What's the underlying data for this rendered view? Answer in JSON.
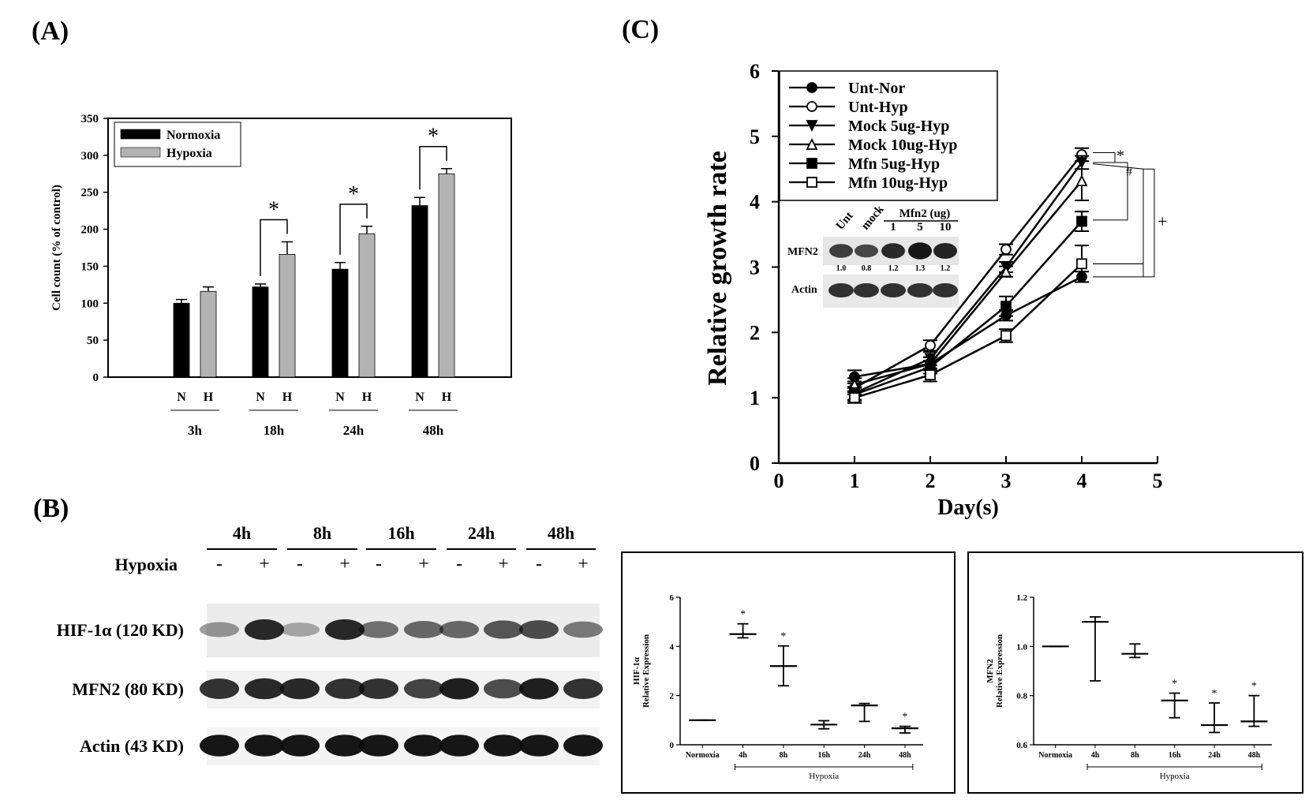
{
  "figure": {
    "panel_a": "(A)",
    "panel_b": "(B)",
    "panel_c": "(C)"
  },
  "chart_data": [
    {
      "id": "A",
      "type": "bar",
      "ylabel": "Cell count (% of control)",
      "ylim": [
        0,
        350
      ],
      "yticks": [
        0,
        50,
        100,
        150,
        200,
        250,
        300,
        350
      ],
      "groups": [
        "3h",
        "18h",
        "24h",
        "48h"
      ],
      "bar_labels": [
        "N",
        "H"
      ],
      "legend_position": "top-left",
      "grid": false,
      "series": [
        {
          "name": "Normoxia",
          "color": "#000000",
          "values": [
            100,
            122,
            146,
            232
          ],
          "errors": [
            5,
            4,
            9,
            11
          ]
        },
        {
          "name": "Hypoxia",
          "color": "#b3b3b3",
          "values": [
            116,
            166,
            194,
            275
          ],
          "errors": [
            6,
            17,
            10,
            7
          ]
        }
      ],
      "annotations": [
        {
          "group": "18h",
          "text": "*"
        },
        {
          "group": "24h",
          "text": "*"
        },
        {
          "group": "48h",
          "text": "*"
        }
      ]
    },
    {
      "id": "C",
      "type": "line",
      "xlabel": "Day(s)",
      "ylabel": "Relative growth rate",
      "xlim": [
        0,
        5
      ],
      "ylim": [
        0,
        6
      ],
      "xticks": [
        0,
        1,
        2,
        3,
        4,
        5
      ],
      "yticks": [
        0,
        1,
        2,
        3,
        4,
        5,
        6
      ],
      "legend_position": "top-left",
      "grid": false,
      "x": [
        1,
        2,
        3,
        4
      ],
      "series": [
        {
          "name": "Unt-Nor",
          "marker": "circle-filled",
          "values": [
            1.32,
            1.52,
            2.26,
            2.85
          ],
          "errors": [
            0.1,
            0.1,
            0.08,
            0.08
          ]
        },
        {
          "name": "Unt-Hyp",
          "marker": "circle-open",
          "values": [
            1.15,
            1.8,
            3.27,
            4.72
          ],
          "errors": [
            0.1,
            0.08,
            0.08,
            0.1
          ]
        },
        {
          "name": "Mock 5ug-Hyp",
          "marker": "triangle-down-filled",
          "values": [
            1.07,
            1.6,
            3.0,
            4.6
          ],
          "errors": [
            0.1,
            0.1,
            0.08,
            0.1
          ]
        },
        {
          "name": "Mock 10ug-Hyp",
          "marker": "triangle-up-open",
          "values": [
            1.2,
            1.52,
            2.93,
            4.32
          ],
          "errors": [
            0.1,
            0.1,
            0.08,
            0.3
          ]
        },
        {
          "name": "Mfn 5ug-Hyp",
          "marker": "square-filled",
          "values": [
            1.05,
            1.47,
            2.4,
            3.7
          ],
          "errors": [
            0.1,
            0.1,
            0.15,
            0.15
          ]
        },
        {
          "name": "Mfn 10ug-Hyp",
          "marker": "square-open",
          "values": [
            1.0,
            1.35,
            1.95,
            3.05
          ],
          "errors": [
            0.08,
            0.1,
            0.1,
            0.28
          ]
        }
      ],
      "annotations": [
        "*",
        "#",
        "+"
      ],
      "inset": {
        "header": "Mfn2 (ug)",
        "lanes": [
          "Unt",
          "mock",
          "1",
          "5",
          "10"
        ],
        "rows": [
          "MFN2",
          "Actin"
        ],
        "quant": [
          "1.0",
          "0.8",
          "1.2",
          "1.3",
          "1.2"
        ]
      }
    },
    {
      "id": "B-blot",
      "type": "table",
      "timepoints": [
        "4h",
        "8h",
        "16h",
        "24h",
        "48h"
      ],
      "row_header": "Hypoxia",
      "signs": [
        "-",
        "+"
      ],
      "proteins": [
        "HIF-1α (120 KD)",
        "MFN2 (80 KD)",
        "Actin (43 KD)"
      ]
    },
    {
      "id": "B-HIF",
      "type": "scatter",
      "ylabel": "HIF-1α",
      "ylabel2": "Relative Expression",
      "ylim": [
        0,
        6
      ],
      "yticks": [
        0,
        2,
        4,
        6
      ],
      "categories": [
        "Normoxia",
        "4h",
        "8h",
        "16h",
        "24h",
        "48h"
      ],
      "group_label": "Hypoxia",
      "mean": [
        1.0,
        4.5,
        3.2,
        0.82,
        1.6,
        0.67
      ],
      "low": [
        1.0,
        4.35,
        2.4,
        0.65,
        0.95,
        0.48
      ],
      "high": [
        1.0,
        4.92,
        4.02,
        0.98,
        1.68,
        0.75
      ],
      "significance": [
        "",
        "*",
        "*",
        "",
        "",
        "*"
      ]
    },
    {
      "id": "B-MFN2",
      "type": "scatter",
      "ylabel": "MFN2",
      "ylabel2": "Relative Expression",
      "ylim": [
        0.6,
        1.2
      ],
      "yticks": [
        "0.6",
        "0.8",
        "1.0",
        "1.2"
      ],
      "categories": [
        "Normoxia",
        "4h",
        "8h",
        "16h",
        "24h",
        "48h"
      ],
      "group_label": "Hypoxia",
      "mean": [
        1.0,
        1.1,
        0.97,
        0.78,
        0.68,
        0.695
      ],
      "low": [
        1.0,
        0.86,
        0.955,
        0.71,
        0.65,
        0.675
      ],
      "high": [
        1.0,
        1.12,
        1.01,
        0.81,
        0.77,
        0.8
      ],
      "significance": [
        "",
        "",
        "",
        "*",
        "*",
        "*"
      ]
    }
  ]
}
